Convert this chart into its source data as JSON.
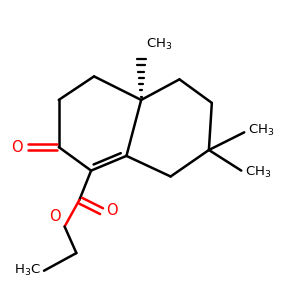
{
  "background": "#ffffff",
  "bond_color": "#000000",
  "oxygen_color": "#ff0000",
  "line_width": 1.8,
  "figsize": [
    3.0,
    3.0
  ],
  "dpi": 100,
  "xlim": [
    0,
    10
  ],
  "ylim": [
    0,
    10
  ]
}
